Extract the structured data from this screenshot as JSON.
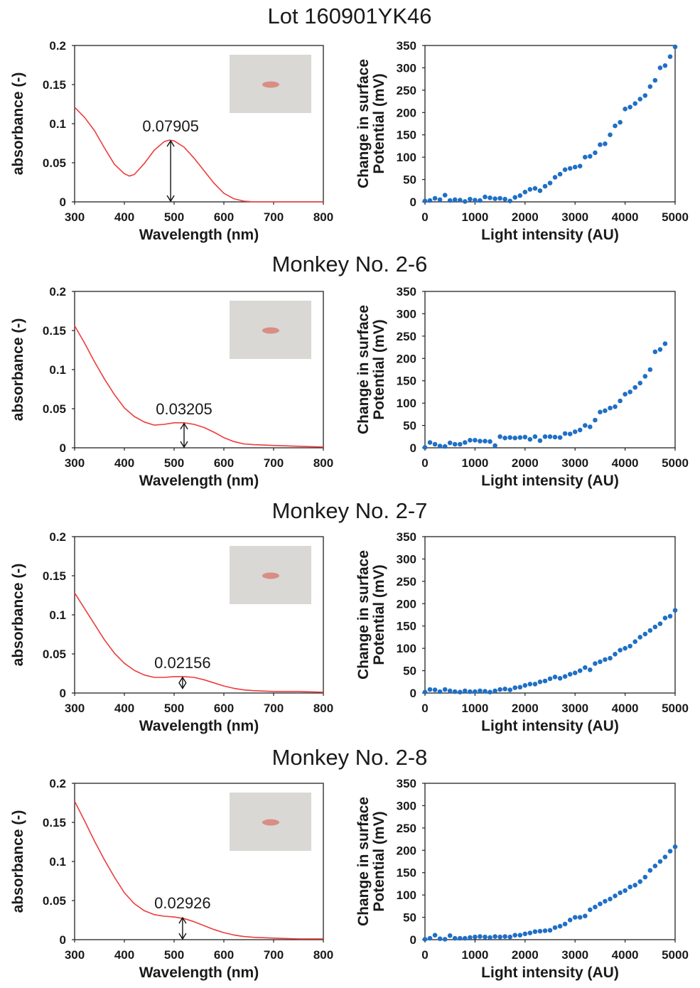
{
  "figure": {
    "colors": {
      "spectrum_line": "#ee3b3b",
      "scatter_points": "#1f6fc5",
      "axis": "#222222",
      "photo_bg": "#d9d8d4",
      "photo_sample": "#d98d85"
    }
  },
  "chart_data": [
    {
      "panel": 0,
      "group_title": "Lot 160901YK46",
      "type": "line",
      "xlabel": "Wavelength (nm)",
      "ylabel": "absorbance (-)",
      "xlim": [
        300,
        800
      ],
      "ylim": [
        0,
        0.2
      ],
      "xticks": [
        "300",
        "400",
        "500",
        "600",
        "700",
        "800"
      ],
      "yticks": [
        "0",
        "0.05",
        "0.1",
        "0.15",
        "0.2"
      ],
      "x": [
        300,
        320,
        340,
        360,
        380,
        400,
        410,
        420,
        440,
        460,
        480,
        490,
        500,
        520,
        540,
        560,
        580,
        600,
        620,
        640,
        660,
        700,
        800
      ],
      "y": [
        0.121,
        0.108,
        0.091,
        0.069,
        0.048,
        0.036,
        0.033,
        0.035,
        0.049,
        0.066,
        0.077,
        0.079,
        0.078,
        0.07,
        0.056,
        0.04,
        0.024,
        0.011,
        0.004,
        0.001,
        0.0,
        0.0,
        0.0
      ],
      "annotation": {
        "label": "0.07905",
        "x": 493,
        "y_top": 0.079,
        "y_bottom": 0.0
      },
      "inset_photo": true
    },
    {
      "panel": 1,
      "group_title": "Lot 160901YK46",
      "type": "scatter",
      "xlabel": "Light intensity (AU)",
      "ylabel_line1": "Change in surface",
      "ylabel_line2": "Potential (mV)",
      "xlim": [
        0,
        5000
      ],
      "ylim": [
        0,
        350
      ],
      "xticks": [
        "0",
        "1000",
        "2000",
        "3000",
        "4000",
        "5000"
      ],
      "yticks": [
        "0",
        "50",
        "100",
        "150",
        "200",
        "250",
        "300",
        "350"
      ],
      "x": [
        0,
        100,
        200,
        300,
        400,
        500,
        600,
        700,
        800,
        900,
        1000,
        1100,
        1200,
        1300,
        1400,
        1500,
        1600,
        1700,
        1800,
        1900,
        2000,
        2100,
        2200,
        2300,
        2400,
        2500,
        2600,
        2700,
        2800,
        2900,
        3000,
        3100,
        3200,
        3300,
        3400,
        3500,
        3600,
        3700,
        3800,
        3900,
        4000,
        4100,
        4200,
        4300,
        4400,
        4500,
        4600,
        4700,
        4800,
        4900,
        5000
      ],
      "y": [
        2,
        3,
        8,
        5,
        15,
        3,
        5,
        4,
        1,
        6,
        4,
        3,
        11,
        9,
        7,
        8,
        6,
        2,
        10,
        14,
        22,
        28,
        30,
        25,
        35,
        42,
        55,
        62,
        72,
        75,
        78,
        80,
        100,
        102,
        110,
        128,
        130,
        150,
        170,
        178,
        208,
        212,
        220,
        230,
        238,
        258,
        272,
        300,
        305,
        325,
        347
      ]
    },
    {
      "panel": 2,
      "group_title": "Monkey No. 2-6",
      "type": "line",
      "xlabel": "Wavelength (nm)",
      "ylabel": "absorbance (-)",
      "xlim": [
        300,
        800
      ],
      "ylim": [
        0,
        0.2
      ],
      "xticks": [
        "300",
        "400",
        "500",
        "600",
        "700",
        "800"
      ],
      "yticks": [
        "0",
        "0.05",
        "0.1",
        "0.15",
        "0.2"
      ],
      "x": [
        300,
        320,
        340,
        360,
        380,
        400,
        420,
        440,
        460,
        480,
        500,
        520,
        540,
        560,
        580,
        600,
        620,
        640,
        660,
        700,
        750,
        800
      ],
      "y": [
        0.156,
        0.134,
        0.11,
        0.088,
        0.068,
        0.051,
        0.04,
        0.033,
        0.029,
        0.03,
        0.032,
        0.032,
        0.03,
        0.026,
        0.02,
        0.013,
        0.008,
        0.005,
        0.004,
        0.003,
        0.002,
        0.001
      ],
      "annotation": {
        "label": "0.03205",
        "x": 520,
        "y_top": 0.032,
        "y_bottom": 0.0
      },
      "inset_photo": true
    },
    {
      "panel": 3,
      "group_title": "Monkey No. 2-6",
      "type": "scatter",
      "xlabel": "Light intensity (AU)",
      "ylabel_line1": "Change in surface",
      "ylabel_line2": "Potential (mV)",
      "xlim": [
        0,
        5000
      ],
      "ylim": [
        0,
        350
      ],
      "xticks": [
        "0",
        "1000",
        "2000",
        "3000",
        "4000",
        "5000"
      ],
      "yticks": [
        "0",
        "50",
        "100",
        "150",
        "200",
        "250",
        "300",
        "350"
      ],
      "x": [
        0,
        100,
        200,
        300,
        400,
        500,
        600,
        700,
        800,
        900,
        1000,
        1100,
        1200,
        1300,
        1400,
        1500,
        1600,
        1700,
        1800,
        1900,
        2000,
        2100,
        2200,
        2300,
        2400,
        2500,
        2600,
        2700,
        2800,
        2900,
        3000,
        3100,
        3200,
        3300,
        3400,
        3500,
        3600,
        3700,
        3800,
        3900,
        4000,
        4100,
        4200,
        4300,
        4400,
        4500,
        4600,
        4700,
        4800
      ],
      "y": [
        1,
        12,
        8,
        4,
        3,
        11,
        8,
        8,
        12,
        17,
        17,
        15,
        15,
        14,
        5,
        25,
        22,
        23,
        22,
        23,
        24,
        19,
        25,
        16,
        25,
        25,
        24,
        23,
        32,
        31,
        36,
        40,
        50,
        47,
        62,
        80,
        83,
        89,
        92,
        105,
        120,
        125,
        135,
        145,
        160,
        175,
        215,
        220,
        233
      ]
    },
    {
      "panel": 4,
      "group_title": "Monkey No. 2-7",
      "type": "line",
      "xlabel": "Wavelength (nm)",
      "ylabel": "absorbance (-)",
      "xlim": [
        300,
        800
      ],
      "ylim": [
        0,
        0.2
      ],
      "xticks": [
        "300",
        "400",
        "500",
        "600",
        "700",
        "800"
      ],
      "yticks": [
        "0",
        "0.05",
        "0.1",
        "0.15",
        "0.2"
      ],
      "x": [
        300,
        320,
        340,
        360,
        380,
        400,
        420,
        440,
        460,
        480,
        500,
        520,
        540,
        560,
        580,
        600,
        620,
        640,
        660,
        700,
        750,
        800
      ],
      "y": [
        0.128,
        0.108,
        0.088,
        0.068,
        0.051,
        0.038,
        0.029,
        0.023,
        0.02,
        0.02,
        0.021,
        0.021,
        0.02,
        0.017,
        0.013,
        0.009,
        0.006,
        0.004,
        0.003,
        0.002,
        0.002,
        0.001
      ],
      "annotation": {
        "label": "0.02156",
        "x": 517,
        "y_top": 0.021,
        "y_bottom": 0.005
      },
      "inset_photo": true
    },
    {
      "panel": 5,
      "group_title": "Monkey No. 2-7",
      "type": "scatter",
      "xlabel": "Light intensity (AU)",
      "ylabel_line1": "Change in surface",
      "ylabel_line2": "Potential (mV)",
      "xlim": [
        0,
        5000
      ],
      "ylim": [
        0,
        350
      ],
      "xticks": [
        "0",
        "1000",
        "2000",
        "3000",
        "4000",
        "5000"
      ],
      "yticks": [
        "0",
        "50",
        "100",
        "150",
        "200",
        "250",
        "300",
        "350"
      ],
      "x": [
        0,
        100,
        200,
        300,
        400,
        500,
        600,
        700,
        800,
        900,
        1000,
        1100,
        1200,
        1300,
        1400,
        1500,
        1600,
        1700,
        1800,
        1900,
        2000,
        2100,
        2200,
        2300,
        2400,
        2500,
        2600,
        2700,
        2800,
        2900,
        3000,
        3100,
        3200,
        3300,
        3400,
        3500,
        3600,
        3700,
        3800,
        3900,
        4000,
        4100,
        4200,
        4300,
        4400,
        4500,
        4600,
        4700,
        4800,
        4900,
        5000
      ],
      "y": [
        2,
        8,
        7,
        3,
        8,
        5,
        3,
        2,
        5,
        3,
        3,
        5,
        4,
        2,
        5,
        8,
        9,
        7,
        12,
        13,
        17,
        20,
        20,
        25,
        27,
        32,
        36,
        33,
        37,
        42,
        45,
        50,
        57,
        52,
        66,
        70,
        75,
        78,
        87,
        96,
        100,
        105,
        115,
        125,
        132,
        140,
        148,
        155,
        168,
        172,
        185
      ]
    },
    {
      "panel": 6,
      "group_title": "Monkey No. 2-8",
      "type": "line",
      "xlabel": "Wavelength (nm)",
      "ylabel": "absorbance (-)",
      "xlim": [
        300,
        800
      ],
      "ylim": [
        0,
        0.2
      ],
      "xticks": [
        "300",
        "400",
        "500",
        "600",
        "700",
        "800"
      ],
      "yticks": [
        "0",
        "0.05",
        "0.1",
        "0.15",
        "0.2"
      ],
      "x": [
        300,
        320,
        340,
        360,
        380,
        400,
        420,
        440,
        460,
        480,
        500,
        520,
        540,
        560,
        580,
        600,
        620,
        640,
        660,
        700,
        750,
        800
      ],
      "y": [
        0.177,
        0.152,
        0.126,
        0.102,
        0.08,
        0.06,
        0.046,
        0.037,
        0.032,
        0.03,
        0.029,
        0.027,
        0.023,
        0.018,
        0.013,
        0.009,
        0.006,
        0.004,
        0.003,
        0.002,
        0.001,
        0.001
      ],
      "annotation": {
        "label": "0.02926",
        "x": 517,
        "y_top": 0.029,
        "y_bottom": 0.0
      },
      "inset_photo": true
    },
    {
      "panel": 7,
      "group_title": "Monkey No. 2-8",
      "type": "scatter",
      "xlabel": "Light intensity (AU)",
      "ylabel_line1": "Change in surface",
      "ylabel_line2": "Potential (mV)",
      "xlim": [
        0,
        5000
      ],
      "ylim": [
        0,
        350
      ],
      "xticks": [
        "0",
        "1000",
        "2000",
        "3000",
        "4000",
        "5000"
      ],
      "yticks": [
        "0",
        "50",
        "100",
        "150",
        "200",
        "250",
        "300",
        "350"
      ],
      "x": [
        0,
        100,
        200,
        300,
        400,
        500,
        600,
        700,
        800,
        900,
        1000,
        1100,
        1200,
        1300,
        1400,
        1500,
        1600,
        1700,
        1800,
        1900,
        2000,
        2100,
        2200,
        2300,
        2400,
        2500,
        2600,
        2700,
        2800,
        2900,
        3000,
        3100,
        3200,
        3300,
        3400,
        3500,
        3600,
        3700,
        3800,
        3900,
        4000,
        4100,
        4200,
        4300,
        4400,
        4500,
        4600,
        4700,
        4800,
        4900,
        5000
      ],
      "y": [
        1,
        3,
        10,
        2,
        1,
        9,
        3,
        3,
        3,
        5,
        6,
        7,
        6,
        5,
        7,
        6,
        7,
        6,
        10,
        10,
        13,
        15,
        18,
        19,
        20,
        21,
        27,
        30,
        35,
        44,
        50,
        50,
        53,
        67,
        73,
        80,
        86,
        91,
        98,
        105,
        110,
        118,
        122,
        130,
        140,
        155,
        165,
        175,
        185,
        198,
        208
      ]
    }
  ]
}
